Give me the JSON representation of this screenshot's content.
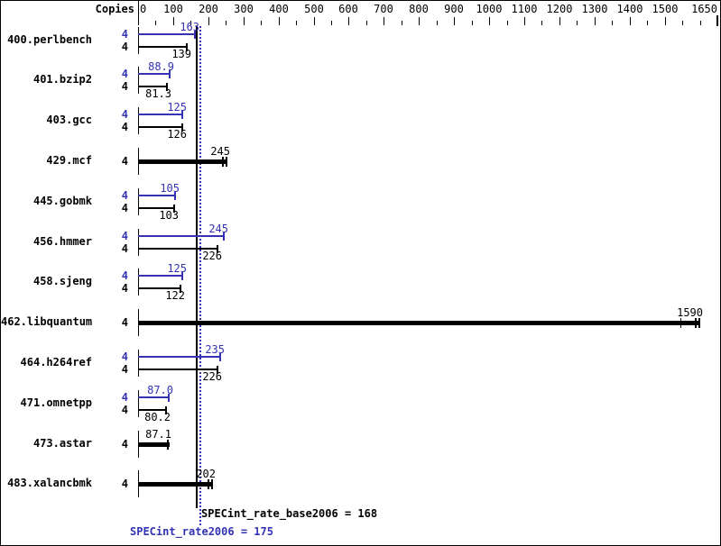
{
  "header": {
    "copies_label": "Copies"
  },
  "chart_data": {
    "type": "bar",
    "orientation": "horizontal",
    "xlabel": "",
    "ylabel": "",
    "xlim": [
      0,
      1650
    ],
    "minor_tick_step": 50,
    "major_tick_step": 100,
    "grid": false,
    "axis_tick_labels": [
      "0",
      "100",
      "200",
      "300",
      "400",
      "500",
      "600",
      "700",
      "800",
      "900",
      "1000",
      "1100",
      "1200",
      "1300",
      "1400",
      "1500",
      "1650"
    ],
    "categories": [
      "400.perlbench",
      "401.bzip2",
      "403.gcc",
      "429.mcf",
      "445.gobmk",
      "456.hmmer",
      "458.sjeng",
      "462.libquantum",
      "464.h264ref",
      "471.omnetpp",
      "473.astar",
      "483.xalancbmk"
    ],
    "copies": [
      4,
      4,
      4,
      4,
      4,
      4,
      4,
      4,
      4,
      4,
      4,
      4
    ],
    "series": [
      {
        "name": "SPECint_rate2006 (peak)",
        "color": "#3333b4",
        "values": [
          163,
          88.9,
          125,
          null,
          105,
          245,
          125,
          null,
          235,
          87.0,
          null,
          null
        ]
      },
      {
        "name": "SPECint_rate_base2006 (base)",
        "color": "#000000",
        "values": [
          139,
          81.3,
          126,
          245,
          103,
          226,
          122,
          1590,
          226,
          80.2,
          87.1,
          202
        ]
      }
    ],
    "benchmarks": [
      {
        "name": "400.perlbench",
        "type": "pair",
        "copies": [
          4,
          4
        ],
        "peak": 163,
        "peak_label": "163",
        "base": 139,
        "base_label": "139"
      },
      {
        "name": "401.bzip2",
        "type": "pair",
        "copies": [
          4,
          4
        ],
        "peak": 88.9,
        "peak_label": "88.9",
        "base": 81.3,
        "base_label": "81.3"
      },
      {
        "name": "403.gcc",
        "type": "pair",
        "copies": [
          4,
          4
        ],
        "peak": 125,
        "peak_label": "125",
        "base": 126,
        "base_label": "126"
      },
      {
        "name": "429.mcf",
        "type": "single",
        "copies": [
          4
        ],
        "value": 245,
        "value_label": "245",
        "end_caps": 2
      },
      {
        "name": "445.gobmk",
        "type": "pair",
        "copies": [
          4,
          4
        ],
        "peak": 105,
        "peak_label": "105",
        "base": 103,
        "base_label": "103"
      },
      {
        "name": "456.hmmer",
        "type": "pair",
        "copies": [
          4,
          4
        ],
        "peak": 245,
        "peak_label": "245",
        "base": 226,
        "base_label": "226"
      },
      {
        "name": "458.sjeng",
        "type": "pair",
        "copies": [
          4,
          4
        ],
        "peak": 125,
        "peak_label": "125",
        "base": 122,
        "base_label": "122"
      },
      {
        "name": "462.libquantum",
        "type": "single",
        "copies": [
          4
        ],
        "value": 1590,
        "value_label": "1590",
        "end_caps": 2,
        "extra_tick": 1545
      },
      {
        "name": "464.h264ref",
        "type": "pair",
        "copies": [
          4,
          4
        ],
        "peak": 235,
        "peak_label": "235",
        "base": 226,
        "base_label": "226"
      },
      {
        "name": "471.omnetpp",
        "type": "pair",
        "copies": [
          4,
          4
        ],
        "peak": 87.0,
        "peak_label": "87.0",
        "base": 80.2,
        "base_label": "80.2"
      },
      {
        "name": "473.astar",
        "type": "single",
        "copies": [
          4
        ],
        "value": 87.1,
        "value_label": "87.1",
        "end_caps": 1
      },
      {
        "name": "483.xalancbmk",
        "type": "single",
        "copies": [
          4
        ],
        "value": 202,
        "value_label": "202",
        "end_caps": 2
      }
    ],
    "reference_lines": [
      {
        "label": "SPECint_rate_base2006 = 168",
        "value": 168,
        "color": "#000000",
        "style": "solid"
      },
      {
        "label": "SPECint_rate2006 = 175",
        "value": 175,
        "color": "#3333b4",
        "style": "dotted"
      }
    ]
  }
}
